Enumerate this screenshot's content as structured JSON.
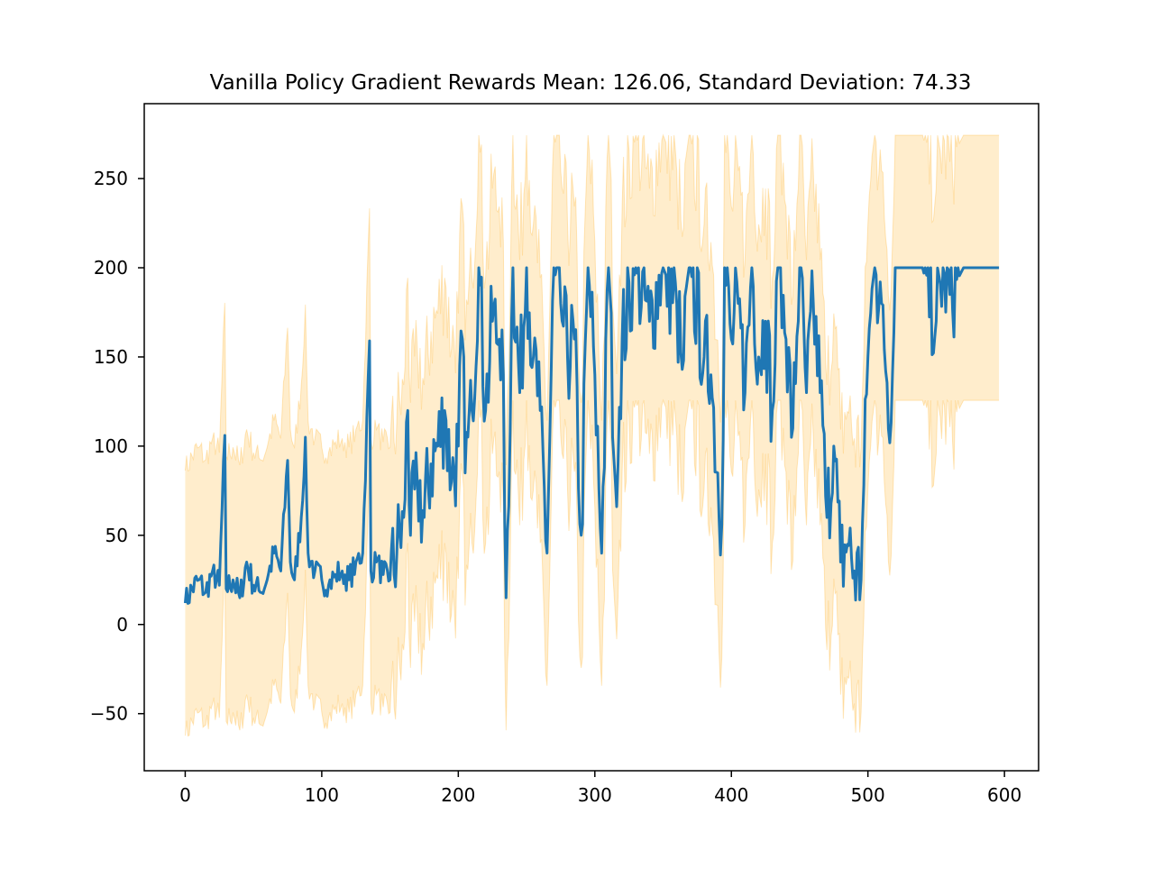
{
  "chart_data": {
    "type": "line",
    "title": "Vanilla Policy Gradient Rewards Mean: 126.06, Standard Deviation: 74.33",
    "xlabel": "",
    "ylabel": "",
    "xlim": [
      -30,
      625
    ],
    "ylim": [
      -82,
      292
    ],
    "x_ticks": [
      0,
      100,
      200,
      300,
      400,
      500,
      600
    ],
    "x_tick_labels": [
      "0",
      "100",
      "200",
      "300",
      "400",
      "500",
      "600"
    ],
    "y_ticks": [
      -50,
      0,
      50,
      100,
      150,
      200,
      250
    ],
    "y_tick_labels": [
      "−50",
      "0",
      "50",
      "100",
      "150",
      "200",
      "250"
    ],
    "grid": false,
    "legend": "none",
    "colors": {
      "line": "#1f77b4",
      "band": "#ffa500"
    },
    "episodes_total": 597,
    "band": {
      "description_value": "rewards ± standard deviation",
      "std": 74.33
    },
    "series": [
      {
        "x": [
          0,
          5,
          10,
          15,
          20,
          25,
          29,
          30,
          35,
          40,
          45,
          50,
          55,
          60,
          65,
          70,
          75,
          77,
          80,
          85,
          88,
          90,
          95,
          100,
          105,
          110,
          115,
          120,
          125,
          130,
          135,
          136,
          140,
          145,
          150,
          155,
          160,
          163,
          165,
          170,
          175,
          180,
          185,
          190,
          195,
          200,
          203,
          205,
          210,
          215,
          220,
          225,
          230,
          233,
          235,
          240,
          245,
          250,
          255,
          260,
          265,
          270,
          275,
          280,
          285,
          290,
          295,
          300,
          305,
          310,
          315,
          320,
          330,
          340,
          350,
          360,
          364,
          370,
          380,
          385,
          390,
          393,
          395,
          400,
          405,
          410,
          415,
          420,
          425,
          430,
          435,
          440,
          445,
          450,
          455,
          460,
          465,
          470,
          475,
          480,
          485,
          490,
          495,
          500,
          505,
          510,
          517,
          520,
          530,
          540,
          550,
          555,
          560,
          570,
          580,
          590,
          596
        ],
        "y": [
          12,
          20,
          25,
          18,
          30,
          22,
          106,
          20,
          25,
          15,
          35,
          22,
          18,
          25,
          40,
          30,
          92,
          35,
          25,
          60,
          105,
          40,
          30,
          25,
          22,
          28,
          30,
          25,
          35,
          40,
          159,
          30,
          35,
          28,
          25,
          40,
          60,
          120,
          50,
          80,
          60,
          90,
          100,
          120,
          80,
          100,
          160,
          85,
          120,
          200,
          120,
          170,
          160,
          140,
          15,
          200,
          130,
          200,
          150,
          120,
          40,
          200,
          180,
          150,
          160,
          50,
          200,
          140,
          40,
          200,
          80,
          160,
          200,
          170,
          200,
          180,
          143,
          200,
          150,
          140,
          85,
          56,
          200,
          160,
          180,
          130,
          200,
          150,
          170,
          120,
          200,
          160,
          110,
          200,
          130,
          180,
          130,
          60,
          100,
          35,
          45,
          30,
          25,
          150,
          200,
          180,
          113,
          200,
          200,
          200,
          170,
          200,
          185,
          200,
          200,
          200,
          200
        ],
        "values_precision": "approximate, read from gridlines; dense ~600-point series summarised"
      }
    ]
  }
}
